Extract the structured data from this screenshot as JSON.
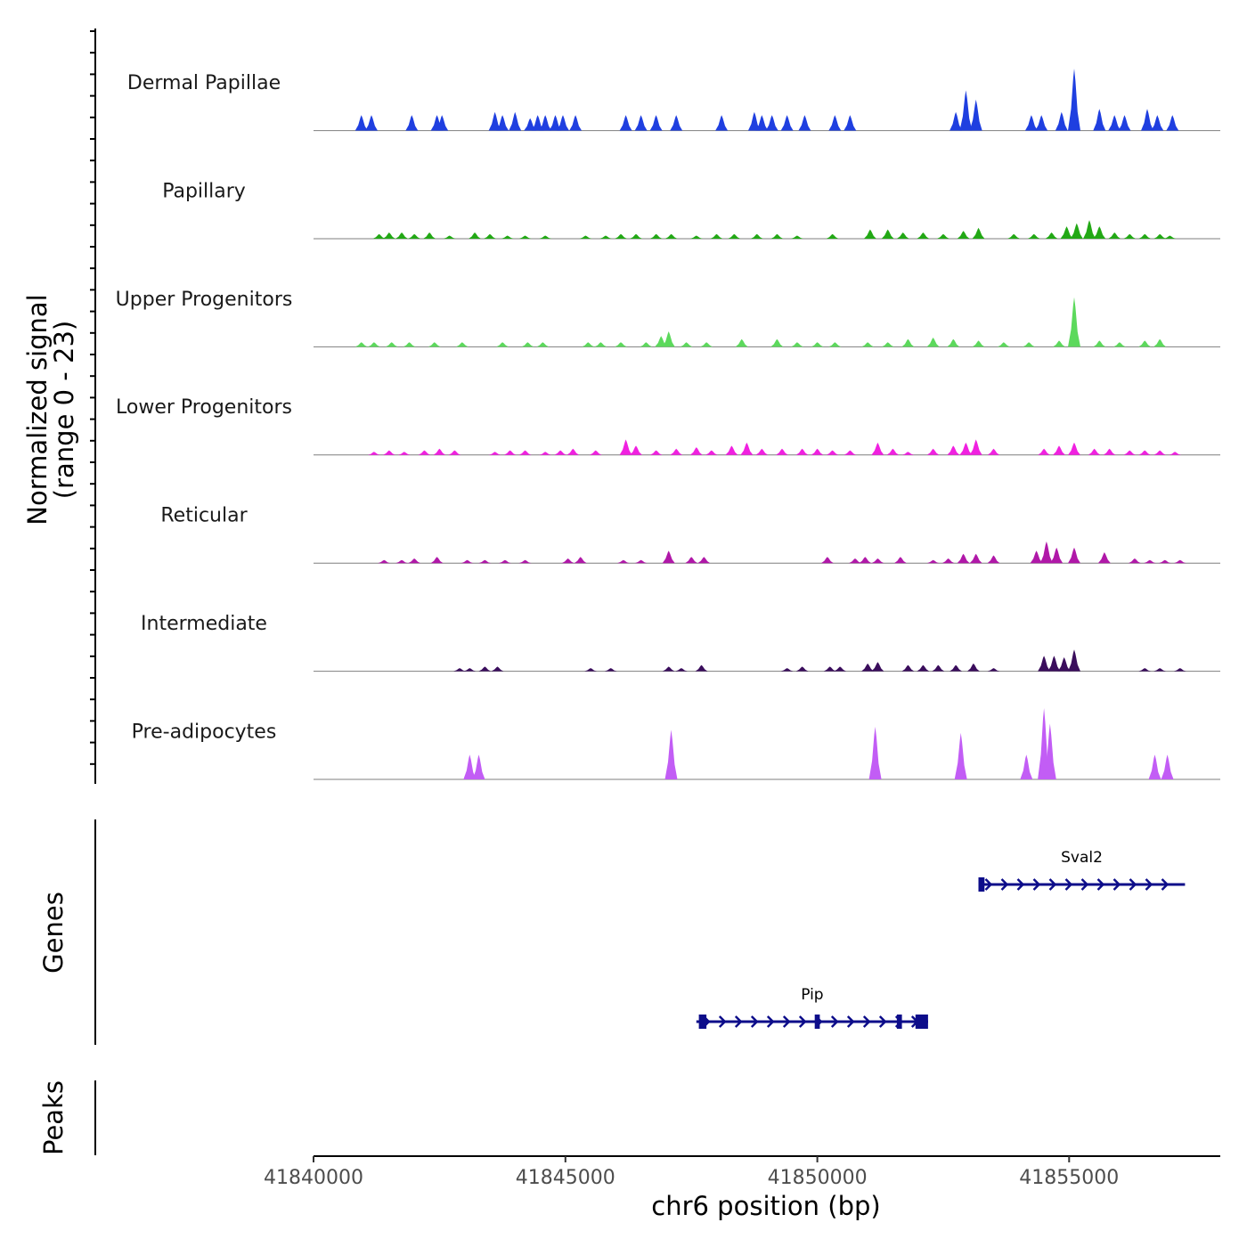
{
  "chart_data": {
    "type": "area",
    "ylabel_line1": "Normalized signal",
    "ylabel_line2": "(range 0 - 23)",
    "y_range": [
      0,
      23
    ],
    "xlabel": "chr6 position (bp)",
    "x_range": [
      41840000,
      41858000
    ],
    "x_ticks": [
      41840000,
      41845000,
      41850000,
      41855000
    ],
    "x_tick_labels": [
      "41840000",
      "41845000",
      "41850000",
      "41855000"
    ],
    "tracks": [
      {
        "name": "Dermal Papillae",
        "color": "#1f3fe0",
        "peaks": [
          [
            41840950,
            5
          ],
          [
            41841150,
            5
          ],
          [
            41841950,
            5
          ],
          [
            41842450,
            5
          ],
          [
            41842550,
            5
          ],
          [
            41843600,
            6
          ],
          [
            41843750,
            5
          ],
          [
            41844000,
            6
          ],
          [
            41844300,
            4
          ],
          [
            41844450,
            5
          ],
          [
            41844600,
            5
          ],
          [
            41844800,
            5
          ],
          [
            41844950,
            5
          ],
          [
            41845200,
            5
          ],
          [
            41846200,
            5
          ],
          [
            41846500,
            5
          ],
          [
            41846800,
            5
          ],
          [
            41847200,
            5
          ],
          [
            41848100,
            5
          ],
          [
            41848750,
            6
          ],
          [
            41848900,
            5
          ],
          [
            41849100,
            5
          ],
          [
            41849400,
            5
          ],
          [
            41849750,
            5
          ],
          [
            41850350,
            5
          ],
          [
            41850650,
            5
          ],
          [
            41852750,
            6
          ],
          [
            41852950,
            13
          ],
          [
            41853150,
            10
          ],
          [
            41854250,
            5
          ],
          [
            41854450,
            5
          ],
          [
            41854850,
            6
          ],
          [
            41855100,
            20
          ],
          [
            41855600,
            7
          ],
          [
            41855900,
            5
          ],
          [
            41856100,
            5
          ],
          [
            41856550,
            7
          ],
          [
            41856750,
            5
          ],
          [
            41857050,
            5
          ]
        ]
      },
      {
        "name": "Papillary",
        "color": "#22a815",
        "peaks": [
          [
            41841300,
            1.5
          ],
          [
            41841500,
            2
          ],
          [
            41841750,
            2
          ],
          [
            41842000,
            1.5
          ],
          [
            41842300,
            2
          ],
          [
            41842700,
            1
          ],
          [
            41843200,
            2
          ],
          [
            41843500,
            1.5
          ],
          [
            41843850,
            1
          ],
          [
            41844200,
            1
          ],
          [
            41844600,
            1
          ],
          [
            41845400,
            1
          ],
          [
            41845800,
            1
          ],
          [
            41846100,
            1.5
          ],
          [
            41846400,
            1.5
          ],
          [
            41846800,
            1.5
          ],
          [
            41847100,
            1.5
          ],
          [
            41847600,
            1
          ],
          [
            41848000,
            1.5
          ],
          [
            41848350,
            1.5
          ],
          [
            41848800,
            1.5
          ],
          [
            41849200,
            1.5
          ],
          [
            41849600,
            1
          ],
          [
            41850300,
            1.5
          ],
          [
            41851050,
            3
          ],
          [
            41851400,
            3
          ],
          [
            41851700,
            2
          ],
          [
            41852100,
            2
          ],
          [
            41852500,
            1.5
          ],
          [
            41852900,
            2.5
          ],
          [
            41853200,
            3.5
          ],
          [
            41853900,
            1.5
          ],
          [
            41854300,
            1.5
          ],
          [
            41854650,
            2
          ],
          [
            41854950,
            4
          ],
          [
            41855150,
            5
          ],
          [
            41855400,
            6
          ],
          [
            41855600,
            4
          ],
          [
            41855900,
            2
          ],
          [
            41856200,
            1.5
          ],
          [
            41856500,
            1.5
          ],
          [
            41856800,
            1.5
          ],
          [
            41857000,
            1
          ]
        ]
      },
      {
        "name": "Upper Progenitors",
        "color": "#5cd95c",
        "peaks": [
          [
            41840950,
            1.5
          ],
          [
            41841200,
            1.5
          ],
          [
            41841550,
            1.5
          ],
          [
            41841900,
            1.5
          ],
          [
            41842400,
            1.5
          ],
          [
            41842950,
            1.5
          ],
          [
            41843750,
            1.5
          ],
          [
            41844250,
            1.5
          ],
          [
            41844550,
            1.5
          ],
          [
            41845450,
            1.5
          ],
          [
            41845700,
            1.5
          ],
          [
            41846100,
            1.5
          ],
          [
            41846600,
            1.5
          ],
          [
            41846900,
            3.5
          ],
          [
            41847050,
            5
          ],
          [
            41847400,
            1.5
          ],
          [
            41847800,
            1.5
          ],
          [
            41848500,
            2.5
          ],
          [
            41849200,
            2.5
          ],
          [
            41849600,
            1.5
          ],
          [
            41850000,
            1.5
          ],
          [
            41850350,
            1.5
          ],
          [
            41851000,
            1.5
          ],
          [
            41851400,
            1.5
          ],
          [
            41851800,
            2.5
          ],
          [
            41852300,
            3
          ],
          [
            41852700,
            2.5
          ],
          [
            41853200,
            2
          ],
          [
            41853700,
            1.5
          ],
          [
            41854200,
            1.5
          ],
          [
            41854800,
            2
          ],
          [
            41855100,
            16
          ],
          [
            41855600,
            2
          ],
          [
            41856000,
            1.5
          ],
          [
            41856500,
            2
          ],
          [
            41856800,
            2.5
          ]
        ]
      },
      {
        "name": "Lower Progenitors",
        "color": "#f020e0",
        "peaks": [
          [
            41841200,
            1
          ],
          [
            41841500,
            1.5
          ],
          [
            41841800,
            1
          ],
          [
            41842200,
            1.5
          ],
          [
            41842500,
            2
          ],
          [
            41842800,
            1.5
          ],
          [
            41843600,
            1
          ],
          [
            41843900,
            1.5
          ],
          [
            41844200,
            1.5
          ],
          [
            41844600,
            1
          ],
          [
            41844900,
            1.5
          ],
          [
            41845150,
            2
          ],
          [
            41845600,
            1.5
          ],
          [
            41846200,
            5
          ],
          [
            41846400,
            3
          ],
          [
            41846800,
            1.5
          ],
          [
            41847200,
            2
          ],
          [
            41847600,
            2.5
          ],
          [
            41847900,
            1.5
          ],
          [
            41848300,
            3
          ],
          [
            41848600,
            4
          ],
          [
            41848900,
            2
          ],
          [
            41849300,
            2
          ],
          [
            41849700,
            2
          ],
          [
            41850000,
            2
          ],
          [
            41850300,
            1.5
          ],
          [
            41850650,
            1.5
          ],
          [
            41851200,
            4
          ],
          [
            41851500,
            2
          ],
          [
            41851800,
            1
          ],
          [
            41852300,
            2
          ],
          [
            41852700,
            3
          ],
          [
            41852950,
            4
          ],
          [
            41853150,
            5
          ],
          [
            41853500,
            2
          ],
          [
            41854500,
            2
          ],
          [
            41854800,
            3
          ],
          [
            41855100,
            4
          ],
          [
            41855500,
            2
          ],
          [
            41855800,
            2
          ],
          [
            41856200,
            1.5
          ],
          [
            41856500,
            1.5
          ],
          [
            41856800,
            1.5
          ],
          [
            41857100,
            1
          ]
        ]
      },
      {
        "name": "Reticular",
        "color": "#b018a8",
        "peaks": [
          [
            41841400,
            1
          ],
          [
            41841750,
            1
          ],
          [
            41842000,
            1.5
          ],
          [
            41842450,
            2
          ],
          [
            41843050,
            1
          ],
          [
            41843400,
            1
          ],
          [
            41843800,
            1
          ],
          [
            41844200,
            1
          ],
          [
            41845050,
            1.5
          ],
          [
            41845300,
            2
          ],
          [
            41846150,
            1
          ],
          [
            41846500,
            1
          ],
          [
            41847050,
            4
          ],
          [
            41847500,
            2
          ],
          [
            41847750,
            2
          ],
          [
            41850200,
            2
          ],
          [
            41850750,
            1.5
          ],
          [
            41850950,
            2
          ],
          [
            41851200,
            1.5
          ],
          [
            41851650,
            2
          ],
          [
            41852300,
            1
          ],
          [
            41852600,
            1.5
          ],
          [
            41852900,
            3
          ],
          [
            41853150,
            3
          ],
          [
            41853500,
            2.5
          ],
          [
            41854350,
            4
          ],
          [
            41854550,
            7
          ],
          [
            41854750,
            5
          ],
          [
            41855100,
            5
          ],
          [
            41855700,
            3.5
          ],
          [
            41856300,
            1.5
          ],
          [
            41856600,
            1
          ],
          [
            41856900,
            1
          ],
          [
            41857200,
            1
          ]
        ]
      },
      {
        "name": "Intermediate",
        "color": "#3a0d5c",
        "peaks": [
          [
            41842900,
            1
          ],
          [
            41843100,
            1
          ],
          [
            41843400,
            1.5
          ],
          [
            41843650,
            1.5
          ],
          [
            41845500,
            1
          ],
          [
            41845900,
            1
          ],
          [
            41847050,
            1.5
          ],
          [
            41847300,
            1
          ],
          [
            41847700,
            2
          ],
          [
            41849400,
            1
          ],
          [
            41849700,
            1.5
          ],
          [
            41850250,
            1.5
          ],
          [
            41850450,
            1.5
          ],
          [
            41851000,
            2.5
          ],
          [
            41851200,
            3
          ],
          [
            41851800,
            2
          ],
          [
            41852100,
            2
          ],
          [
            41852400,
            2
          ],
          [
            41852750,
            2
          ],
          [
            41853100,
            2.5
          ],
          [
            41853500,
            1
          ],
          [
            41854500,
            5
          ],
          [
            41854700,
            5
          ],
          [
            41854900,
            4.5
          ],
          [
            41855100,
            7
          ],
          [
            41856500,
            1
          ],
          [
            41856800,
            1
          ],
          [
            41857200,
            1
          ]
        ]
      },
      {
        "name": "Pre-adipocytes",
        "color": "#c25df5",
        "peaks": [
          [
            41843100,
            8
          ],
          [
            41843280,
            8
          ],
          [
            41847100,
            16
          ],
          [
            41851150,
            17
          ],
          [
            41852850,
            15
          ],
          [
            41854150,
            8
          ],
          [
            41854500,
            23
          ],
          [
            41854620,
            18
          ],
          [
            41856700,
            8
          ],
          [
            41856950,
            8
          ]
        ]
      }
    ],
    "genes": [
      {
        "name": "Sval2",
        "start": 41853200,
        "end": 41857300,
        "strand": "+",
        "row": 1,
        "exons": [
          [
            41853200,
            41853320
          ]
        ]
      },
      {
        "name": "Pip",
        "start": 41847600,
        "end": 41852200,
        "strand": "+",
        "row": 2,
        "exons": [
          [
            41847650,
            41847800
          ],
          [
            41849950,
            41850050
          ],
          [
            41851580,
            41851680
          ],
          [
            41851950,
            41852200
          ]
        ]
      }
    ],
    "genes_label": "Genes",
    "peaks_label": "Peaks",
    "peak_regions": []
  }
}
